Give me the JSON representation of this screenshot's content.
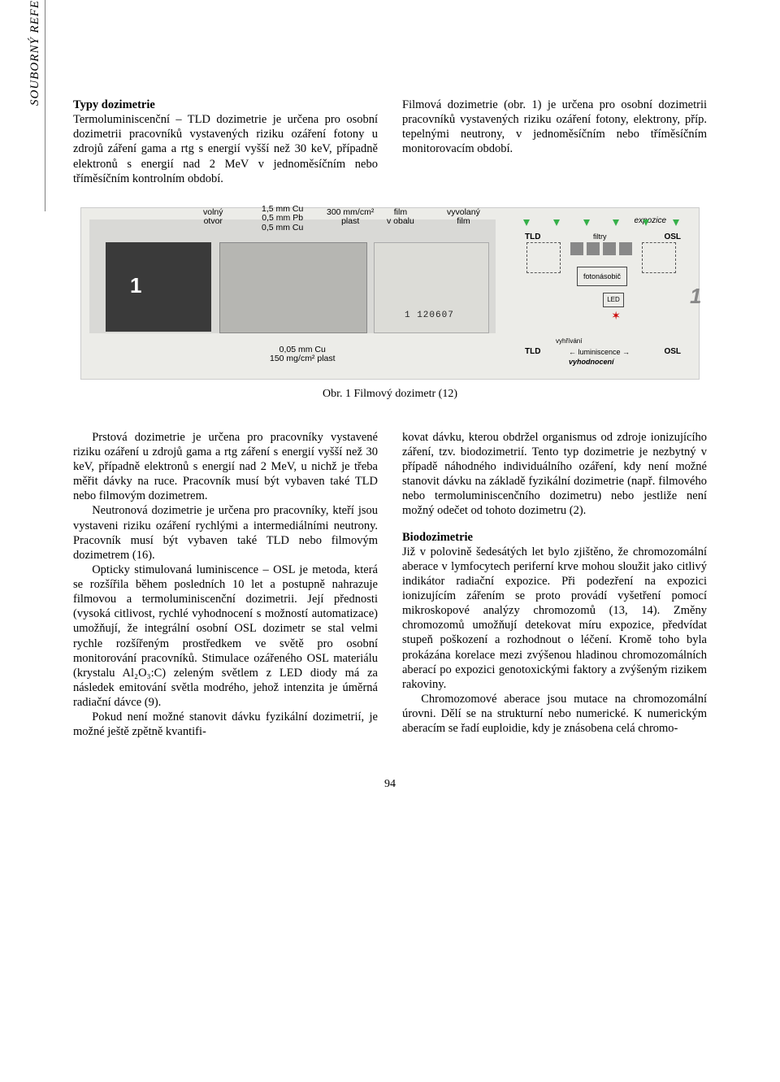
{
  "sidebar": {
    "label": "SOUBORNÝ REFERÁT"
  },
  "top": {
    "left": {
      "heading": "Typy dozimetrie",
      "text": "Termoluminiscenční – TLD dozimetrie je určena pro osobní dozimetrii pracovníků vystavených riziku ozáření fotony u zdrojů záření gama a rtg s energií vyšší než 30 keV, případně elektronů s energií nad 2 MeV v jednoměsíčním nebo tříměsíčním kontrolním období."
    },
    "right": {
      "text": "Filmová dozimetrie (obr. 1) je určena pro osobní dozimetrii pracovníků vystavených riziku ozáření fotony, elektrony, příp. tepelnými neutrony, v jednoměsíčním nebo tříměsíčním monitorovacím období."
    }
  },
  "figure": {
    "caption": "Obr. 1 Filmový dozimetr (12)",
    "anno": {
      "volny_otvor": "volný\notvor",
      "cu_pb_cu": "1,5 mm Cu\n0,5 mm Pb\n0,5 mm Cu",
      "plast_300": "300 mm/cm²\nplast",
      "film_vobalu": "film\nv obalu",
      "vyvolany_film": "vyvolaný\nfilm",
      "bottom": "0,05 mm Cu\n150 mg/cm² plast",
      "serial": "1  120607"
    },
    "schematic": {
      "expozice": "expozice",
      "filtry": "filtry",
      "TLD": "TLD",
      "OSL": "OSL",
      "fotonasobic": "fotonásobič",
      "LED": "LED",
      "luminiscence": "← luminiscence →",
      "vyhrivani": "vyhřívání",
      "vyhodnoceni": "vyhodnocení"
    }
  },
  "body": {
    "left": {
      "p1": "Prstová dozimetrie je určena pro pracovníky vystavené riziku ozáření u zdrojů gama a rtg záření s energií vyšší než 30 keV, případně elektronů s energií nad 2 MeV, u nichž je třeba měřit dávky na ruce. Pracovník musí být vybaven také TLD nebo filmovým dozimetrem.",
      "p2": "Neutronová dozimetrie je určena pro pracovníky, kteří jsou vystaveni riziku ozáření rychlými a intermediálními neutrony. Pracovník musí být vybaven také TLD nebo filmovým dozimetrem (16).",
      "p3": "Opticky stimulovaná luminiscence – OSL je metoda, která se rozšířila během posledních 10 let a postupně nahrazuje filmovou a termoluminiscenční dozimetrii. Její přednosti (vysoká citlivost, rychlé vyhodnocení s možností automatizace) umožňují, že integrální osobní OSL dozimetr se stal velmi rychle rozšířeným prostředkem ve světě pro osobní monitorování pracovníků. Stimulace ozářeného OSL materiálu (krystalu Al₂O₃:C) zeleným světlem z LED diody má za následek emitování světla modrého, jehož intenzita je úměrná radiační dávce (9).",
      "p4": "Pokud není možné stanovit dávku fyzikální dozimetrií, je možné ještě zpětně kvantifi-"
    },
    "right": {
      "p1": "kovat dávku, kterou obdržel organismus od zdroje ionizujícího záření, tzv. biodozimetrií. Tento typ dozimetrie je nezbytný v případě náhodného individuálního ozáření, kdy není možné stanovit dávku na základě fyzikální dozimetrie (např. filmového nebo termoluminiscenčního dozimetru) nebo jestliže není možný odečet od tohoto dozimetru (2).",
      "subhead": "Biodozimetrie",
      "p2": "Již v polovině šedesátých let bylo zjištěno, že chromozomální aberace v lymfocytech periferní krve mohou sloužit jako citlivý indikátor radiační expozice. Při podezření na expozici ionizujícím zářením se proto provádí vyšetření pomocí mikroskopové analýzy chromozomů (13, 14). Změny chromozomů umožňují detekovat míru expozice, předvídat stupeň poškození a rozhodnout o léčení. Kromě toho byla prokázána korelace mezi zvýšenou hladinou chromozomálních aberací po expozici genotoxickými faktory a zvýšeným rizikem rakoviny.",
      "p3": "Chromozomové aberace jsou mutace na chromozomální úrovni. Dělí se na strukturní nebo numerické. K numerickým aberacím se řadí euploidie, kdy je znásobena celá chromo-"
    }
  },
  "page_number": "94"
}
